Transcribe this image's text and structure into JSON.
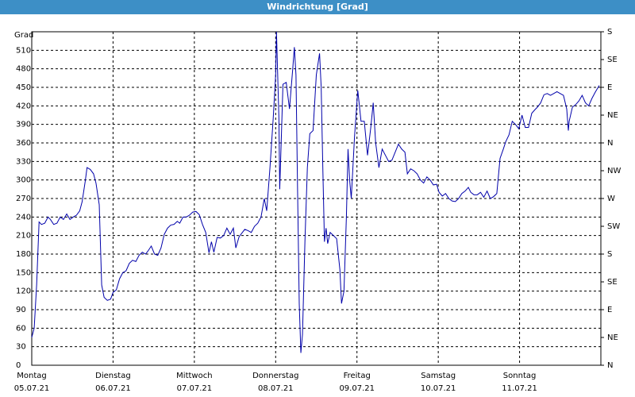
{
  "chart_data": {
    "type": "line",
    "title": "Windrichtung [Grad]",
    "y_label": "Grad",
    "x": [
      0,
      0.03,
      0.06,
      0.09,
      0.12,
      0.16,
      0.2,
      0.23,
      0.27,
      0.31,
      0.35,
      0.39,
      0.43,
      0.47,
      0.51,
      0.55,
      0.59,
      0.62,
      0.66,
      0.68,
      0.72,
      0.76,
      0.79,
      0.83,
      0.86,
      0.89,
      0.93,
      0.97,
      1.0,
      1.04,
      1.08,
      1.12,
      1.16,
      1.2,
      1.24,
      1.28,
      1.32,
      1.36,
      1.4,
      1.43,
      1.47,
      1.51,
      1.55,
      1.59,
      1.63,
      1.67,
      1.71,
      1.75,
      1.79,
      1.82,
      1.86,
      1.9,
      1.94,
      1.98,
      2.02,
      2.06,
      2.1,
      2.14,
      2.18,
      2.21,
      2.24,
      2.28,
      2.32,
      2.36,
      2.4,
      2.44,
      2.48,
      2.51,
      2.55,
      2.59,
      2.62,
      2.66,
      2.7,
      2.74,
      2.78,
      2.82,
      2.86,
      2.89,
      2.93,
      2.97,
      3.0,
      3.01,
      3.04,
      3.05,
      3.07,
      3.09,
      3.13,
      3.17,
      3.21,
      3.23,
      3.25,
      3.27,
      3.29,
      3.31,
      3.33,
      3.36,
      3.39,
      3.42,
      3.46,
      3.5,
      3.54,
      3.56,
      3.58,
      3.6,
      3.62,
      3.64,
      3.67,
      3.71,
      3.75,
      3.79,
      3.81,
      3.84,
      3.87,
      3.89,
      3.91,
      3.93,
      3.97,
      4.01,
      4.03,
      4.05,
      4.09,
      4.13,
      4.17,
      4.2,
      4.23,
      4.27,
      4.31,
      4.35,
      4.39,
      4.43,
      4.47,
      4.51,
      4.55,
      4.59,
      4.62,
      4.66,
      4.7,
      4.74,
      4.78,
      4.82,
      4.86,
      4.9,
      4.94,
      4.98,
      5.01,
      5.05,
      5.09,
      5.13,
      5.17,
      5.21,
      5.25,
      5.29,
      5.33,
      5.37,
      5.4,
      5.44,
      5.48,
      5.52,
      5.56,
      5.6,
      5.64,
      5.68,
      5.72,
      5.76,
      5.8,
      5.83,
      5.87,
      5.91,
      5.95,
      5.99,
      6.03,
      6.07,
      6.11,
      6.15,
      6.19,
      6.22,
      6.26,
      6.3,
      6.34,
      6.38,
      6.42,
      6.46,
      6.5,
      6.54,
      6.58,
      6.6,
      6.61,
      6.65,
      6.69,
      6.73,
      6.77,
      6.81,
      6.85,
      6.89,
      6.93,
      6.98
    ],
    "series": [
      {
        "color": "#0000aa",
        "values": [
          45,
          60,
          130,
          232,
          228,
          230,
          240,
          236,
          228,
          230,
          240,
          236,
          245,
          236,
          240,
          243,
          250,
          265,
          300,
          320,
          317,
          310,
          295,
          260,
          130,
          110,
          105,
          107,
          118,
          122,
          140,
          150,
          153,
          165,
          170,
          168,
          178,
          183,
          180,
          185,
          193,
          180,
          178,
          190,
          212,
          222,
          227,
          228,
          233,
          230,
          240,
          240,
          243,
          248,
          249,
          244,
          228,
          215,
          182,
          200,
          183,
          207,
          206,
          210,
          222,
          212,
          222,
          190,
          208,
          215,
          220,
          218,
          215,
          225,
          230,
          240,
          270,
          250,
          320,
          400,
          470,
          540,
          400,
          285,
          370,
          455,
          458,
          415,
          480,
          515,
          470,
          280,
          100,
          20,
          50,
          200,
          320,
          375,
          380,
          470,
          505,
          450,
          320,
          200,
          222,
          197,
          215,
          210,
          205,
          155,
          100,
          120,
          240,
          350,
          300,
          270,
          370,
          445,
          420,
          395,
          395,
          340,
          385,
          425,
          360,
          320,
          350,
          340,
          330,
          332,
          345,
          358,
          350,
          345,
          310,
          318,
          315,
          310,
          300,
          295,
          305,
          300,
          292,
          293,
          280,
          274,
          278,
          270,
          266,
          265,
          270,
          278,
          282,
          288,
          280,
          276,
          276,
          280,
          272,
          282,
          270,
          273,
          278,
          335,
          350,
          362,
          373,
          395,
          390,
          383,
          405,
          385,
          385,
          408,
          414,
          418,
          425,
          438,
          440,
          437,
          440,
          443,
          440,
          437,
          415,
          380,
          395,
          418,
          422,
          428,
          437,
          425,
          420,
          432,
          442,
          453
        ]
      }
    ],
    "xlim": [
      0,
      7
    ],
    "xticks": [
      {
        "value": 0,
        "label": "Montag",
        "sublabel": "05.07.21"
      },
      {
        "value": 1,
        "label": "Dienstag",
        "sublabel": "06.07.21"
      },
      {
        "value": 2,
        "label": "Mittwoch",
        "sublabel": "07.07.21"
      },
      {
        "value": 3,
        "label": "Donnerstag",
        "sublabel": "08.07.21"
      },
      {
        "value": 4,
        "label": "Freitag",
        "sublabel": "09.07.21"
      },
      {
        "value": 5,
        "label": "Samstag",
        "sublabel": "10.07.21"
      },
      {
        "value": 6,
        "label": "Sonntag",
        "sublabel": "11.07.21"
      }
    ],
    "ylim": [
      0,
      540
    ],
    "yticks": [
      0,
      30,
      60,
      90,
      120,
      150,
      180,
      210,
      240,
      270,
      300,
      330,
      360,
      390,
      420,
      450,
      480,
      510
    ],
    "y2lim": [
      0,
      540
    ],
    "y2ticks": [
      {
        "value": 0,
        "label": "N"
      },
      {
        "value": 45,
        "label": "NE"
      },
      {
        "value": 90,
        "label": "E"
      },
      {
        "value": 135,
        "label": "SE"
      },
      {
        "value": 180,
        "label": "S"
      },
      {
        "value": 225,
        "label": "SW"
      },
      {
        "value": 270,
        "label": "W"
      },
      {
        "value": 315,
        "label": "NW"
      },
      {
        "value": 360,
        "label": "N"
      },
      {
        "value": 405,
        "label": "NE"
      },
      {
        "value": 450,
        "label": "E"
      },
      {
        "value": 495,
        "label": "SE"
      },
      {
        "value": 540,
        "label": "S"
      }
    ],
    "grid": true
  }
}
